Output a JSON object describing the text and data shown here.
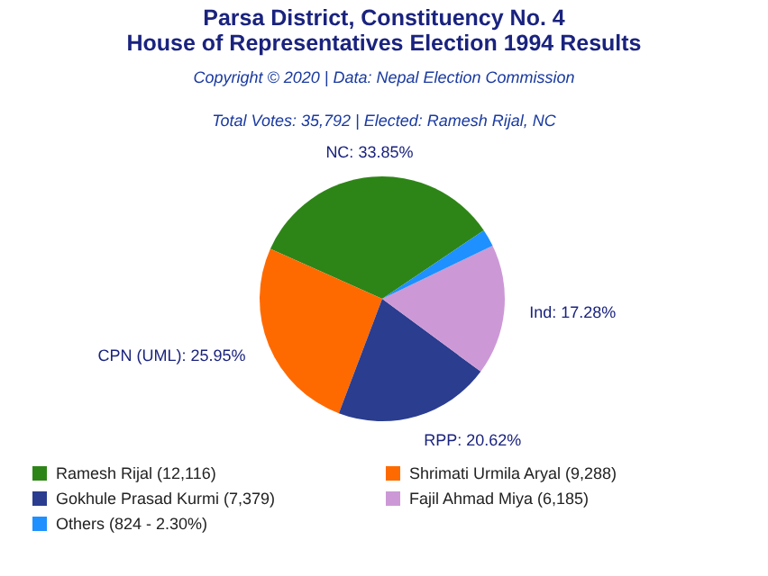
{
  "chart_data": {
    "type": "pie",
    "title": "Parsa District, Constituency No. 4\nHouse of Representatives Election 1994 Results",
    "subtitle": "Copyright © 2020 | Data: Nepal Election Commission",
    "annotations": [
      "Total Votes: 35,792 | Elected: Ramesh Rijal, NC"
    ],
    "categories": [
      "Ramesh Rijal (12,116)",
      "Shrimati Urmila Aryal (9,288)",
      "Gokhule Prasad Kurmi (7,379)",
      "Fajil Ahmad Miya (6,185)",
      "Others (824 - 2.30%)"
    ],
    "values": [
      33.85,
      25.95,
      20.62,
      17.28,
      2.3
    ],
    "value_labels": [
      "NC: 33.85%",
      "CPN (UML): 25.95%",
      "RPP: 20.62%",
      "Ind: 17.28%",
      null
    ],
    "colors": [
      "#2e8517",
      "#ff6a00",
      "#2a3d8f",
      "#cc99d6",
      "#1e90ff"
    ],
    "legend": "bottom"
  }
}
